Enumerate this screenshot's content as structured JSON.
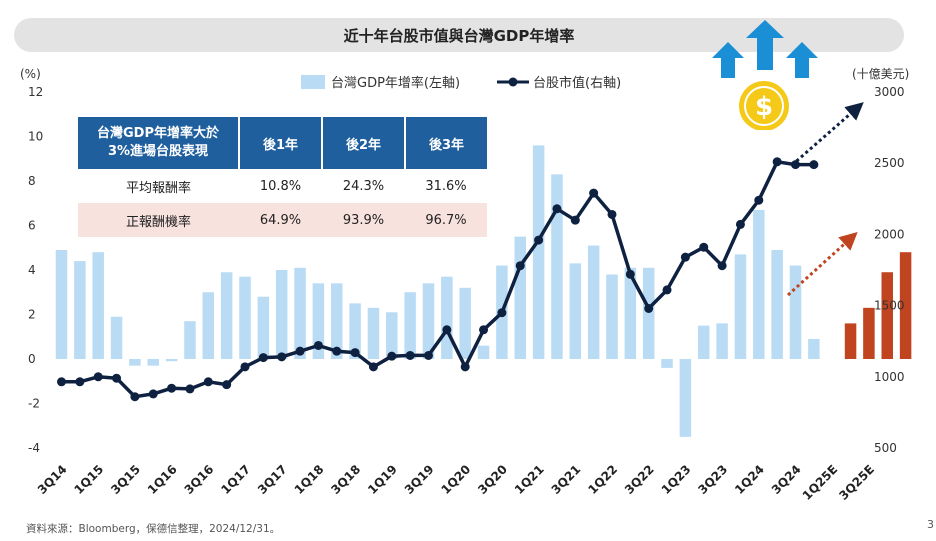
{
  "title": "近十年台股市值與台灣GDP年增率",
  "legend": {
    "bar": "台灣GDP年增率(左軸)",
    "line": "台股市值(右軸)"
  },
  "colors": {
    "bar": "#b9dcf4",
    "line": "#0f2140",
    "forecast_bar": "#c0441f",
    "header": "#1f5f9e",
    "highlight_row": "#f8e2de",
    "arrow_blue": "#1a8fd6",
    "coin": "#f5c918"
  },
  "icons": [
    "up-arrows-icon",
    "dollar-coin-icon"
  ],
  "table": {
    "header": [
      "台灣GDP年增率大於\n3%進場台股表現",
      "後1年",
      "後2年",
      "後3年"
    ],
    "rows": [
      [
        "平均報酬率",
        "10.8%",
        "24.3%",
        "31.6%"
      ],
      [
        "正報酬機率",
        "64.9%",
        "93.9%",
        "96.7%"
      ]
    ]
  },
  "chart_data": {
    "type": "bar+line",
    "left_axis_unit": "(%)",
    "right_axis_unit": "(十億美元)",
    "left_ylim": [
      -4,
      12
    ],
    "left_ticks": [
      12,
      10,
      8,
      6,
      4,
      2,
      0,
      -2,
      -4
    ],
    "right_ylim": [
      500,
      3000
    ],
    "right_ticks": [
      3000,
      2500,
      2000,
      1500,
      1000,
      500
    ],
    "x_tick_labels": [
      "3Q14",
      "1Q15",
      "3Q15",
      "1Q16",
      "3Q16",
      "1Q17",
      "3Q17",
      "1Q18",
      "3Q18",
      "1Q19",
      "3Q19",
      "1Q20",
      "3Q20",
      "1Q21",
      "3Q21",
      "1Q22",
      "3Q22",
      "1Q23",
      "3Q23",
      "1Q24",
      "3Q24",
      "1Q25E",
      "3Q25E"
    ],
    "gdp_growth": [
      4.9,
      4.4,
      4.8,
      1.9,
      -0.3,
      -0.3,
      -0.1,
      1.7,
      3.0,
      3.9,
      3.7,
      2.8,
      4.0,
      4.1,
      3.4,
      3.4,
      2.5,
      2.3,
      2.1,
      3.0,
      3.4,
      3.7,
      3.2,
      0.6,
      4.2,
      5.5,
      9.6,
      8.3,
      4.3,
      5.1,
      3.8,
      4.1,
      4.1,
      -0.4,
      -3.5,
      1.5,
      1.6,
      4.7,
      6.7,
      4.9,
      4.2,
      0.9
    ],
    "gdp_forecast": [
      1.6,
      2.3,
      3.9,
      4.8
    ],
    "market_cap": [
      965,
      965,
      1000,
      990,
      860,
      880,
      920,
      915,
      965,
      945,
      1070,
      1135,
      1140,
      1180,
      1220,
      1180,
      1170,
      1070,
      1145,
      1150,
      1150,
      1330,
      1070,
      1330,
      1450,
      1780,
      1960,
      2180,
      2100,
      2290,
      2140,
      1720,
      1480,
      1610,
      1840,
      1910,
      1780,
      2070,
      2240,
      2510,
      2490,
      2490
    ]
  },
  "source_note": "資料來源：Bloomberg，保德信整理，2024/12/31。",
  "page_number": "3"
}
